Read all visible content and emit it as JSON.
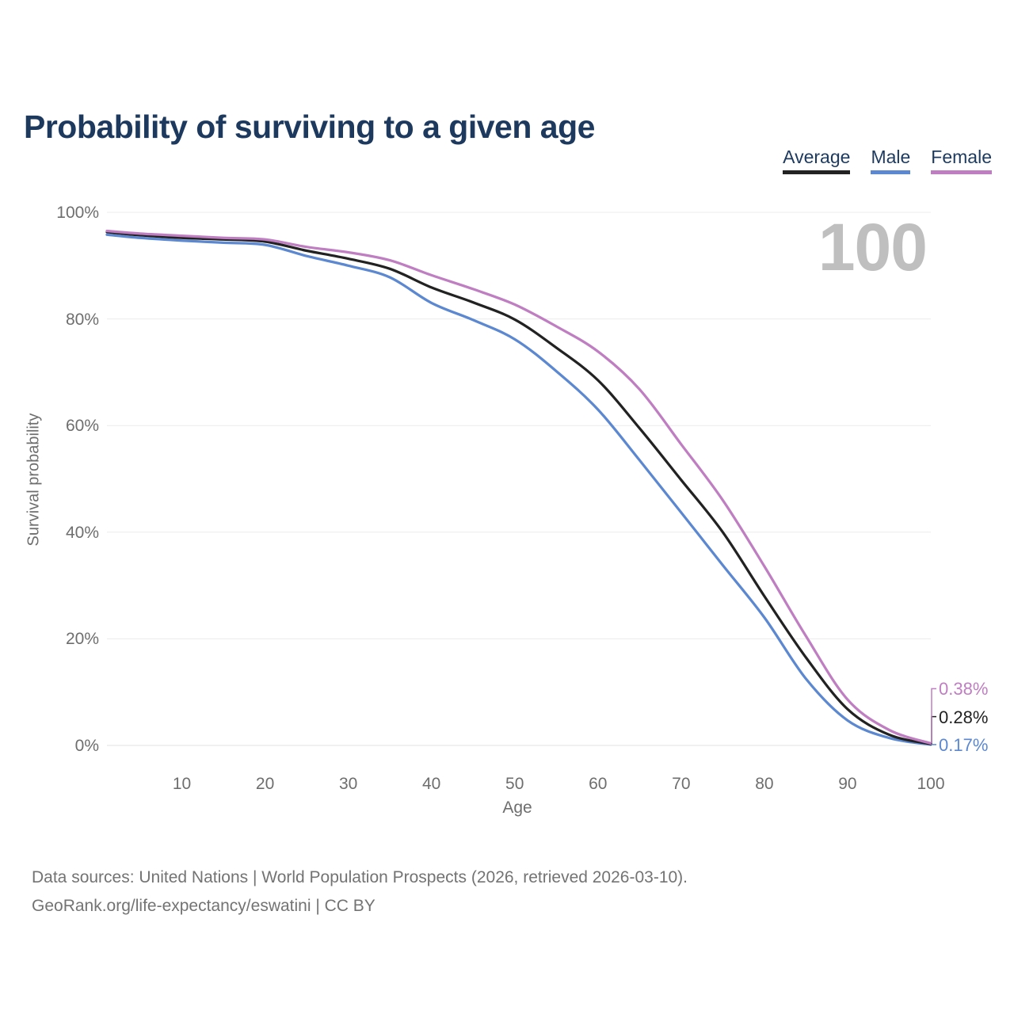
{
  "title": "Probability of surviving to a given age",
  "watermark": "100",
  "legend": [
    {
      "label": "Average",
      "color": "#222222"
    },
    {
      "label": "Male",
      "color": "#5b88d0"
    },
    {
      "label": "Female",
      "color": "#c07ec2"
    }
  ],
  "chart_data": {
    "type": "line",
    "title": "Probability of surviving to a given age",
    "xlabel": "Age",
    "ylabel": "Survival probability",
    "xlim": [
      1,
      100
    ],
    "ylim": [
      0,
      100
    ],
    "x_ticks": [
      10,
      20,
      30,
      40,
      50,
      60,
      70,
      80,
      90,
      100
    ],
    "y_ticks": [
      0,
      20,
      40,
      60,
      80,
      100
    ],
    "y_tick_suffix": "%",
    "grid": "horizontal",
    "legend_position": "top-right",
    "x": [
      1,
      5,
      10,
      15,
      20,
      25,
      30,
      35,
      40,
      45,
      50,
      55,
      60,
      65,
      70,
      75,
      80,
      85,
      90,
      95,
      100
    ],
    "series": [
      {
        "name": "Male",
        "color": "#5b88d0",
        "end_label": "0.17%",
        "values": [
          95.8,
          95.2,
          94.7,
          94.3,
          93.9,
          91.8,
          90.0,
          87.8,
          83.0,
          79.8,
          76.2,
          70.2,
          63.0,
          53.5,
          43.7,
          33.8,
          24.0,
          12.5,
          4.7,
          1.4,
          0.17
        ]
      },
      {
        "name": "Average",
        "color": "#222222",
        "end_label": "0.28%",
        "values": [
          96.3,
          95.7,
          95.2,
          94.9,
          94.5,
          92.8,
          91.3,
          89.4,
          85.9,
          83.1,
          79.9,
          74.6,
          68.5,
          59.5,
          49.8,
          40.0,
          28.0,
          16.5,
          6.8,
          2.0,
          0.28
        ]
      },
      {
        "name": "Female",
        "color": "#c07ec2",
        "end_label": "0.38%",
        "values": [
          96.5,
          96.0,
          95.6,
          95.2,
          94.9,
          93.5,
          92.5,
          91.0,
          88.2,
          85.6,
          82.7,
          78.6,
          73.9,
          66.8,
          56.5,
          46.0,
          33.6,
          20.5,
          8.6,
          2.9,
          0.38
        ]
      }
    ]
  },
  "footer": {
    "line1": "Data sources: United Nations | World Population Prospects (2026, retrieved 2026-03-10).",
    "line2": "GeoRank.org/life-expectancy/eswatini | CC BY"
  },
  "colors": {
    "title": "#1d3a5e",
    "axis_text": "#6e6e6e",
    "grid": "#ececec",
    "zero_line": "#e2e2e2",
    "watermark": "#bfbfbf",
    "footer_text": "#737373"
  }
}
